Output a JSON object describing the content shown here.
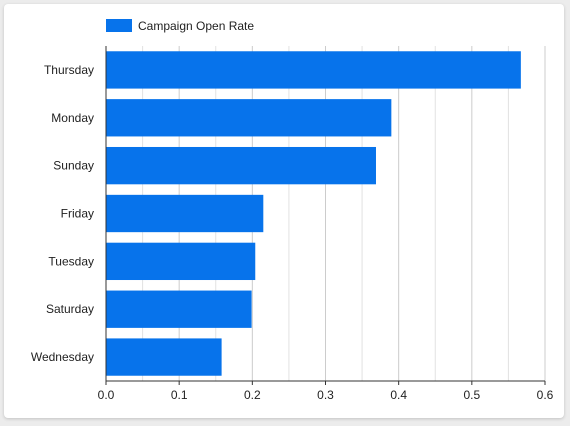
{
  "chart_data": {
    "type": "bar",
    "orientation": "horizontal",
    "categories": [
      "Thursday",
      "Monday",
      "Sunday",
      "Friday",
      "Tuesday",
      "Saturday",
      "Wednesday"
    ],
    "series": [
      {
        "name": "Campaign Open Rate",
        "color": "#0773EB",
        "values": [
          0.567,
          0.39,
          0.369,
          0.215,
          0.204,
          0.199,
          0.158
        ]
      }
    ],
    "xlim": [
      0,
      0.6
    ],
    "xticks": [
      "0.0",
      "0.1",
      "0.2",
      "0.3",
      "0.4",
      "0.5",
      "0.6"
    ],
    "grid": true,
    "legend_position": "top-left"
  }
}
